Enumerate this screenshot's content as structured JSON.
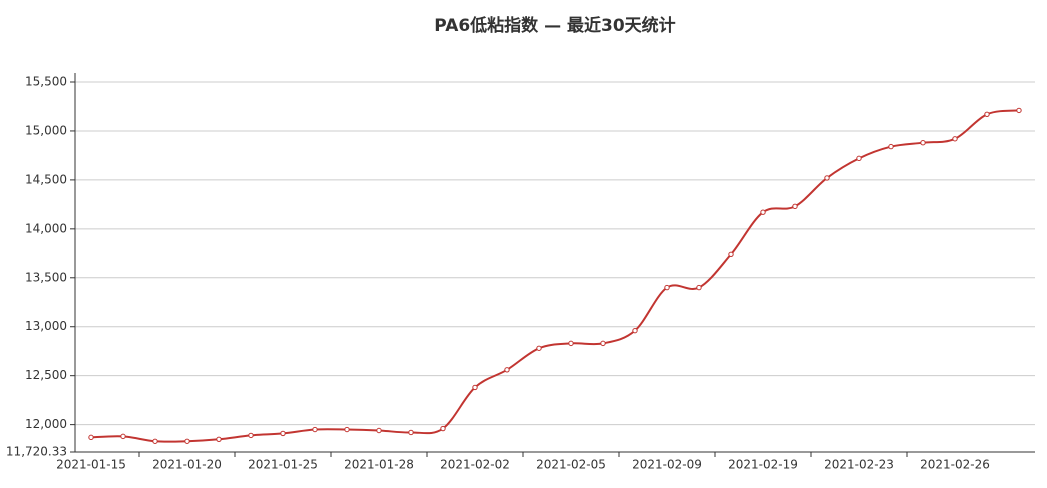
{
  "chart_data": {
    "type": "line",
    "title": "PA6低粘指数  —  最近30天统计",
    "categories": [
      "2021-01-15",
      null,
      null,
      "2021-01-20",
      null,
      null,
      "2021-01-25",
      null,
      null,
      "2021-01-28",
      null,
      null,
      "2021-02-02",
      null,
      null,
      "2021-02-05",
      null,
      null,
      "2021-02-09",
      null,
      null,
      "2021-02-19",
      null,
      null,
      "2021-02-23",
      null,
      null,
      "2021-02-26",
      null,
      null
    ],
    "values": [
      11870,
      11880,
      11830,
      11830,
      11850,
      11890,
      11910,
      11950,
      11950,
      11940,
      11920,
      11960,
      12380,
      12560,
      12780,
      12830,
      12830,
      12960,
      13400,
      13400,
      13740,
      14170,
      14230,
      14520,
      14720,
      14840,
      14880,
      14920,
      15170,
      15210
    ],
    "color": "#c23531",
    "ylim": [
      11720.33,
      15500
    ],
    "yticks": [
      {
        "value": 11720.33,
        "label": "11,720.33"
      },
      {
        "value": 12000,
        "label": "12,000"
      },
      {
        "value": 12500,
        "label": "12,500"
      },
      {
        "value": 13000,
        "label": "13,000"
      },
      {
        "value": 13500,
        "label": "13,500"
      },
      {
        "value": 14000,
        "label": "14,000"
      },
      {
        "value": 14500,
        "label": "14,500"
      },
      {
        "value": 15000,
        "label": "15,000"
      },
      {
        "value": 15500,
        "label": "15,500"
      }
    ],
    "grid": true,
    "smooth": true
  }
}
